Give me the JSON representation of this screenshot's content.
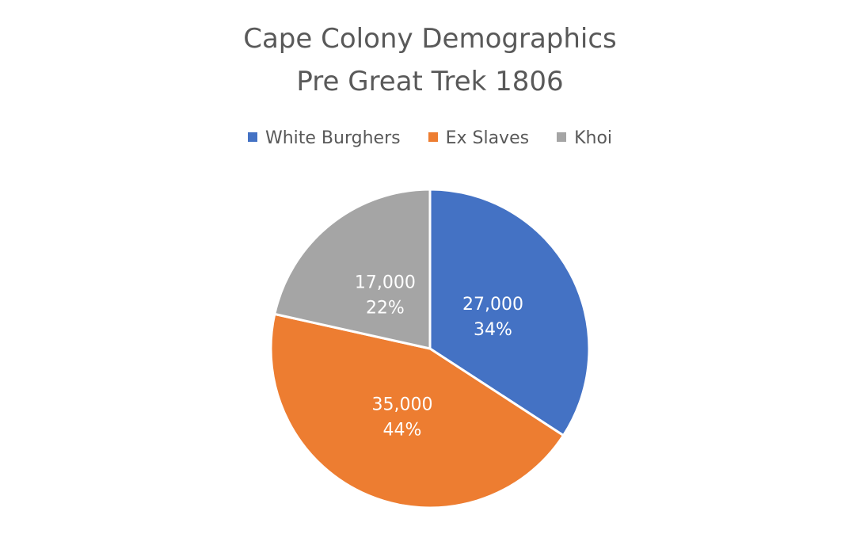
{
  "chart_data": {
    "type": "pie",
    "title": [
      "Cape Colony Demographics",
      "Pre Great Trek 1806"
    ],
    "legend_position": "top",
    "categories": [
      "White Burghers",
      "Ex Slaves",
      "Khoi"
    ],
    "values": [
      27000,
      35000,
      17000
    ],
    "value_labels": [
      "27,000",
      "35,000",
      "17,000"
    ],
    "percent_labels": [
      "34%",
      "44%",
      "22%"
    ],
    "colors": [
      "#4472C4",
      "#ED7D31",
      "#A5A5A5"
    ]
  }
}
